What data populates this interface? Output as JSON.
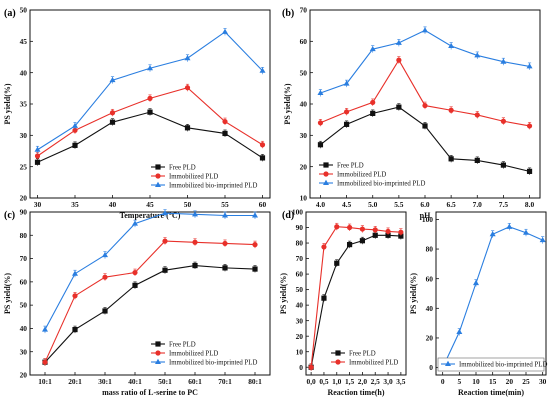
{
  "colors": {
    "free": "#111111",
    "immobilized": "#e8302a",
    "bio": "#2a7ee0"
  },
  "chart_data": [
    {
      "panel_label": "(a)",
      "type": "line",
      "xlabel": "Temperature (°C)",
      "ylabel": "PS yield(%)",
      "x": [
        30,
        35,
        40,
        45,
        50,
        55,
        60
      ],
      "xlim": [
        29,
        61
      ],
      "ylim": [
        20,
        50
      ],
      "xticks": [
        "30",
        "35",
        "40",
        "45",
        "50",
        "55",
        "60"
      ],
      "yticks": [
        "20",
        "25",
        "30",
        "35",
        "40",
        "45",
        "50"
      ],
      "legend_position": "bottom-right",
      "series": [
        {
          "name": "Free PLD",
          "color_key": "free",
          "marker": "square",
          "values": [
            25.7,
            28.4,
            32.1,
            33.7,
            31.2,
            30.3,
            26.4
          ]
        },
        {
          "name": "Immobilized PLD",
          "color_key": "immobilized",
          "marker": "circle",
          "values": [
            26.7,
            30.8,
            33.6,
            35.9,
            37.6,
            32.2,
            28.5
          ]
        },
        {
          "name": "Immobilized bio-imprinted PLD",
          "color_key": "bio",
          "marker": "triangle",
          "values": [
            27.7,
            31.5,
            38.8,
            40.7,
            42.3,
            46.5,
            40.3
          ]
        }
      ]
    },
    {
      "panel_label": "(b)",
      "type": "line",
      "xlabel": "pH",
      "ylabel": "PS yield(%)",
      "x": [
        4.0,
        4.5,
        5.0,
        5.5,
        6.0,
        6.5,
        7.0,
        7.5,
        8.0
      ],
      "xlim": [
        3.8,
        8.2
      ],
      "ylim": [
        10,
        70
      ],
      "xticks": [
        "4.0",
        "4.5",
        "5.0",
        "5.5",
        "6.0",
        "6.5",
        "7.0",
        "7.5",
        "8.0"
      ],
      "yticks": [
        "10",
        "20",
        "30",
        "40",
        "50",
        "60",
        "70"
      ],
      "legend_position": "bottom-left",
      "series": [
        {
          "name": "Free PLD",
          "color_key": "free",
          "marker": "square",
          "values": [
            27.0,
            33.5,
            37.0,
            39.0,
            33.0,
            22.5,
            22.0,
            20.5,
            18.5
          ]
        },
        {
          "name": "Immobilized PLD",
          "color_key": "immobilized",
          "marker": "circle",
          "values": [
            34.0,
            37.5,
            40.5,
            54.0,
            39.5,
            38.0,
            36.5,
            34.5,
            33.0
          ]
        },
        {
          "name": "Immobilized bio-imprinted PLD",
          "color_key": "bio",
          "marker": "triangle",
          "values": [
            43.5,
            46.5,
            57.5,
            59.5,
            63.5,
            58.5,
            55.5,
            53.5,
            52.0
          ]
        }
      ]
    },
    {
      "panel_label": "(c)",
      "type": "line",
      "xlabel": "mass ratio of L-serine to PC",
      "ylabel": "PS yield(%)",
      "x": [
        1,
        2,
        3,
        4,
        5,
        6,
        7,
        8
      ],
      "xlim": [
        0.5,
        8.5
      ],
      "ylim": [
        20,
        90
      ],
      "xticks": [
        "10:1",
        "20:1",
        "30:1",
        "40:1",
        "50:1",
        "60:1",
        "70:1",
        "80:1"
      ],
      "yticks": [
        "20",
        "30",
        "40",
        "50",
        "60",
        "70",
        "80",
        "90"
      ],
      "legend_position": "bottom-right",
      "series": [
        {
          "name": "Free PLD",
          "color_key": "free",
          "marker": "square",
          "values": [
            25.5,
            39.5,
            47.5,
            58.5,
            65.0,
            67.0,
            66.0,
            65.5
          ]
        },
        {
          "name": "Immobilized PLD",
          "color_key": "immobilized",
          "marker": "circle",
          "values": [
            25.5,
            54.0,
            62.0,
            64.0,
            77.5,
            77.0,
            76.5,
            76.0
          ]
        },
        {
          "name": "Immobilized bio-imprinted PLD",
          "color_key": "bio",
          "marker": "triangle",
          "values": [
            39.5,
            63.5,
            71.5,
            85.0,
            89.5,
            89.0,
            88.5,
            88.5
          ]
        }
      ]
    },
    {
      "panel_label": "(d)",
      "type": "line",
      "xlabel": "Reaction time(h)",
      "ylabel": "PS yield(%)",
      "x": [
        0,
        0.5,
        1.0,
        1.5,
        2.0,
        2.5,
        3.0,
        3.5
      ],
      "xlim": [
        -0.2,
        3.7
      ],
      "ylim": [
        -5,
        100
      ],
      "xticks": [
        "0,0",
        "0,5",
        "1,0",
        "1,5",
        "2,0",
        "2,5",
        "3,0",
        "3,5"
      ],
      "yticks": [
        "0",
        "10",
        "20",
        "30",
        "40",
        "50",
        "60",
        "70",
        "80",
        "90",
        "100"
      ],
      "legend_position": "bottom-right",
      "series": [
        {
          "name": "Free PLD",
          "color_key": "free",
          "marker": "square",
          "values": [
            0,
            44.5,
            67.0,
            79.0,
            81.5,
            85.0,
            85.0,
            84.5
          ]
        },
        {
          "name": "Immobilized PLD",
          "color_key": "immobilized",
          "marker": "circle",
          "values": [
            0,
            77.5,
            90.5,
            90.0,
            89.0,
            88.5,
            87.5,
            87.0
          ]
        }
      ]
    },
    {
      "type": "line",
      "xlabel": "Reaction time(min)",
      "ylabel": "PS yield(%)",
      "x": [
        0,
        5,
        10,
        15,
        20,
        25,
        30
      ],
      "xlim": [
        -2,
        31
      ],
      "ylim": [
        -5,
        105
      ],
      "xticks": [
        "0",
        "5",
        "10",
        "15",
        "20",
        "25",
        "30"
      ],
      "yticks": [
        "0",
        "20",
        "40",
        "60",
        "80",
        "100"
      ],
      "legend_position": "bottom-right",
      "series": [
        {
          "name": "Immobilized bio-imprinted PLD",
          "color_key": "bio",
          "marker": "triangle",
          "values": [
            0,
            24.0,
            57.0,
            90.0,
            95.0,
            91.0,
            86.0
          ]
        }
      ]
    }
  ]
}
